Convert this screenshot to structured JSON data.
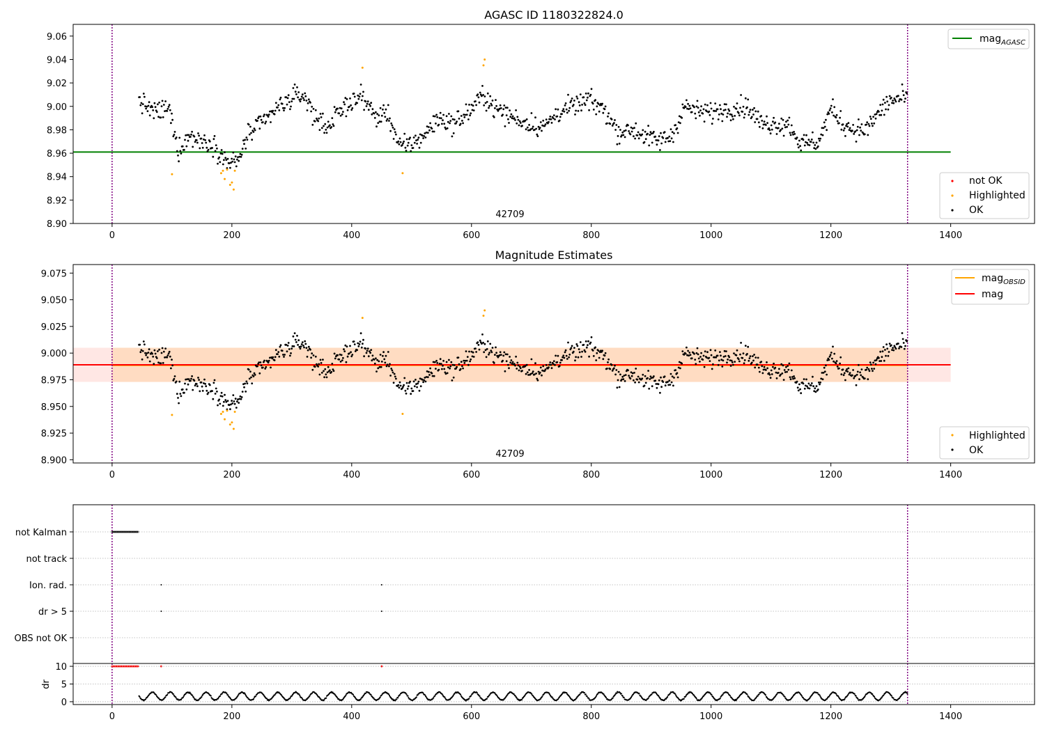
{
  "colors": {
    "ok": "#000000",
    "highlighted": "#ffa500",
    "not_ok": "#ff0000",
    "mag_agasc": "#008000",
    "mag_obsid": "#ffa500",
    "mag": "#ff0000",
    "obsid_band": "#ffdab9",
    "mag_band": "#ffe4e1",
    "boundary": "#800080",
    "grid": "#b0b0b0"
  },
  "chart_data": [
    {
      "type": "scatter",
      "title": "AGASC ID 1180322824.0",
      "xlim": [
        -65,
        1540
      ],
      "ylim": [
        8.9,
        9.07
      ],
      "xticks": [
        0,
        200,
        400,
        600,
        800,
        1000,
        1200,
        1400
      ],
      "yticks": [
        8.9,
        8.92,
        8.94,
        8.96,
        8.98,
        9.0,
        9.02,
        9.04,
        9.06
      ],
      "lines": [
        {
          "name": "mag",
          "subscript": "AGASC",
          "y": 8.961,
          "x": [
            -65,
            1400
          ],
          "color_key": "mag_agasc"
        }
      ],
      "vlines": [
        0,
        1328
      ],
      "obsid_label": {
        "text": "42709",
        "x": 664
      },
      "legend_lines_position": "top-right",
      "legend_points_position": "bottom-right",
      "legend_points": [
        "not OK",
        "Highlighted",
        "OK"
      ]
    },
    {
      "type": "scatter",
      "title": "Magnitude Estimates",
      "xlim": [
        -65,
        1540
      ],
      "ylim": [
        8.897,
        9.083
      ],
      "xticks": [
        0,
        200,
        400,
        600,
        800,
        1000,
        1200,
        1400
      ],
      "yticks": [
        8.9,
        8.925,
        8.95,
        8.975,
        9.0,
        9.025,
        9.05,
        9.075
      ],
      "lines": [
        {
          "name": "mag",
          "subscript": "OBSID",
          "y": 8.9885,
          "x": [
            0,
            1328
          ],
          "color_key": "mag_obsid"
        },
        {
          "name": "mag",
          "subscript": "",
          "y": 8.989,
          "x": [
            -65,
            1400
          ],
          "color_key": "mag"
        }
      ],
      "bands": [
        {
          "y0": 8.973,
          "y1": 9.005,
          "x": [
            -65,
            1400
          ],
          "color_key": "mag_band"
        },
        {
          "y0": 8.973,
          "y1": 9.005,
          "x": [
            0,
            1328
          ],
          "color_key": "obsid_band"
        }
      ],
      "vlines": [
        0,
        1328
      ],
      "obsid_label": {
        "text": "42709",
        "x": 664
      },
      "legend_lines_position": "top-right",
      "legend_points_position": "bottom-right",
      "legend_points": [
        "Highlighted",
        "OK"
      ]
    },
    {
      "type": "scatter",
      "flag_categories": [
        "not Kalman",
        "not track",
        "Ion. rad.",
        "dr > 5",
        "OBS not OK"
      ],
      "flag_points": {
        "not Kalman": {
          "ranges": [
            [
              0,
              44
            ]
          ]
        },
        "Ion. rad.": {
          "x": [
            82,
            450
          ]
        },
        "dr > 5": {
          "x": [
            82,
            450
          ]
        }
      },
      "dr_ylabel": "dr",
      "dr_yticks": [
        0,
        5,
        10
      ],
      "dr_ylim": [
        -0.8,
        10.8
      ],
      "dr_clip_value": 10,
      "dr_clipped": {
        "ranges": [
          [
            0,
            44
          ]
        ],
        "x": [
          82,
          450
        ]
      },
      "dr_typical_range": [
        0.3,
        2.8
      ],
      "xlim": [
        -65,
        1540
      ],
      "xticks": [
        0,
        200,
        400,
        600,
        800,
        1000,
        1200,
        1400
      ],
      "vlines": [
        0,
        1328
      ]
    }
  ]
}
